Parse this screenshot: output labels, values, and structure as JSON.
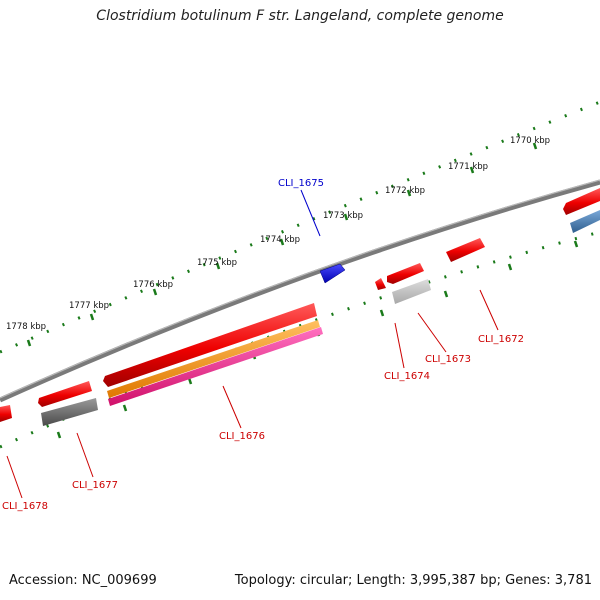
{
  "title": "Clostridium botulinum F str. Langeland, complete genome",
  "footer": {
    "accession": "Accession: NC_009699",
    "summary": "Topology: circular; Length: 3,995,387 bp; Genes: 3,781"
  },
  "colors": {
    "backbone": "#808080",
    "forward_tick": "#1a7a1a",
    "gene_red": "#ff0000",
    "gene_grey": "#777777",
    "gene_orange": "#ff9900",
    "gene_pink": "#ff1493",
    "gene_blue": "#0000ff",
    "gene_steel": "#4682b4",
    "label_red": "#cc0000",
    "label_blue": "#0000cc"
  },
  "kbp_labels": [
    "1770 kbp",
    "1771 kbp",
    "1772 kbp",
    "1773 kbp",
    "1774 kbp",
    "1775 kbp",
    "1776 kbp",
    "1777 kbp",
    "1778 kbp"
  ],
  "gene_labels": [
    {
      "text": "CLI_1672",
      "color": "red"
    },
    {
      "text": "CLI_1673",
      "color": "red"
    },
    {
      "text": "CLI_1674",
      "color": "red"
    },
    {
      "text": "CLI_1675",
      "color": "blue"
    },
    {
      "text": "CLI_1676",
      "color": "red"
    },
    {
      "text": "CLI_1677",
      "color": "red"
    },
    {
      "text": "CLI_1678",
      "color": "red"
    }
  ]
}
